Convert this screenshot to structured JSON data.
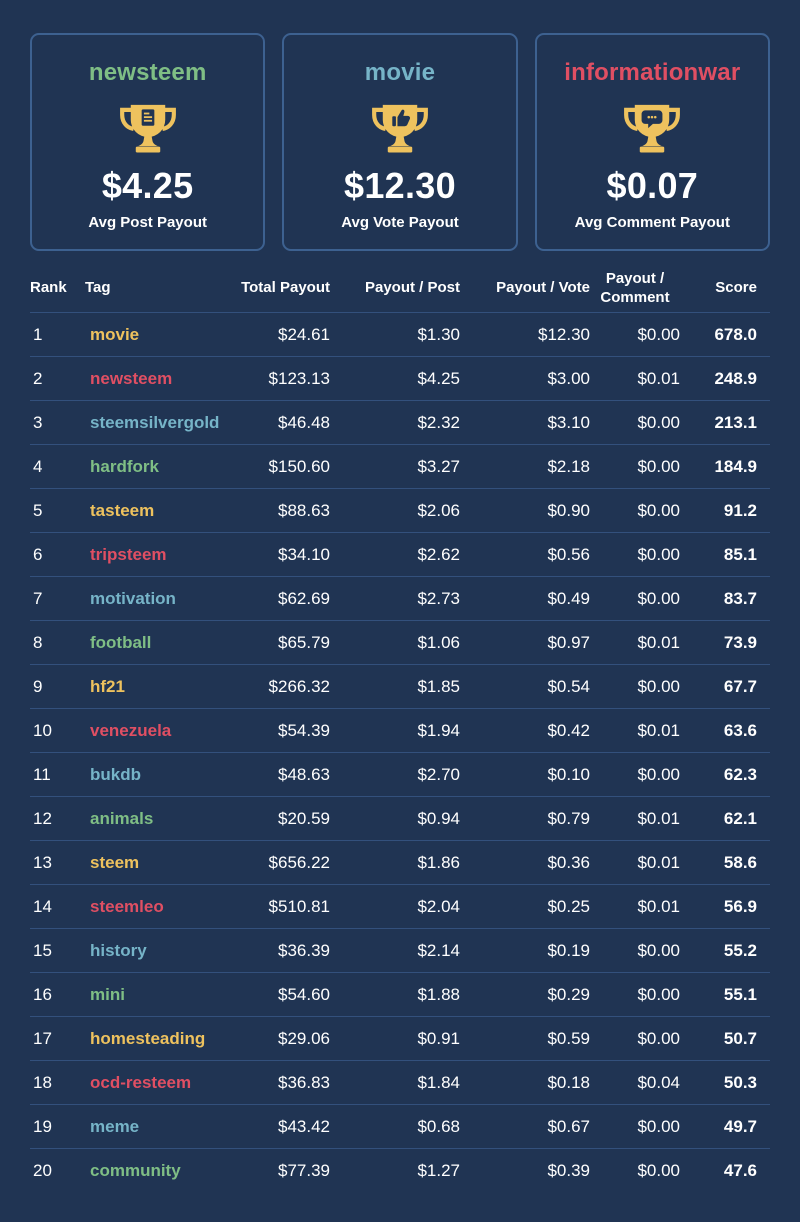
{
  "colors": {
    "background": "#203453",
    "card_border": "#3d6190",
    "row_separator": "#33507c",
    "text": "#ffffff",
    "gold": "#eec25e",
    "red": "#e04f63",
    "blue": "#76b4c8",
    "green": "#7fbe85"
  },
  "cards": [
    {
      "tag": "newsteem",
      "color": "#7fbe85",
      "amount": "$4.25",
      "label": "Avg Post Payout",
      "icon": "post-trophy-icon"
    },
    {
      "tag": "movie",
      "color": "#76b4c8",
      "amount": "$12.30",
      "label": "Avg Vote Payout",
      "icon": "vote-trophy-icon"
    },
    {
      "tag": "informationwar",
      "color": "#e04f63",
      "amount": "$0.07",
      "label": "Avg Comment Payout",
      "icon": "comment-trophy-icon"
    }
  ],
  "table": {
    "headers": [
      "Rank",
      "Tag",
      "Total Payout",
      "Payout / Post",
      "Payout / Vote",
      "Payout / Comment",
      "Score"
    ],
    "tag_color_cycle": [
      "#eec25e",
      "#e04f63",
      "#76b4c8",
      "#7fbe85"
    ],
    "rows": [
      [
        "1",
        "movie",
        "$24.61",
        "$1.30",
        "$12.30",
        "$0.00",
        "678.0"
      ],
      [
        "2",
        "newsteem",
        "$123.13",
        "$4.25",
        "$3.00",
        "$0.01",
        "248.9"
      ],
      [
        "3",
        "steemsilvergold",
        "$46.48",
        "$2.32",
        "$3.10",
        "$0.00",
        "213.1"
      ],
      [
        "4",
        "hardfork",
        "$150.60",
        "$3.27",
        "$2.18",
        "$0.00",
        "184.9"
      ],
      [
        "5",
        "tasteem",
        "$88.63",
        "$2.06",
        "$0.90",
        "$0.00",
        "91.2"
      ],
      [
        "6",
        "tripsteem",
        "$34.10",
        "$2.62",
        "$0.56",
        "$0.00",
        "85.1"
      ],
      [
        "7",
        "motivation",
        "$62.69",
        "$2.73",
        "$0.49",
        "$0.00",
        "83.7"
      ],
      [
        "8",
        "football",
        "$65.79",
        "$1.06",
        "$0.97",
        "$0.01",
        "73.9"
      ],
      [
        "9",
        "hf21",
        "$266.32",
        "$1.85",
        "$0.54",
        "$0.00",
        "67.7"
      ],
      [
        "10",
        "venezuela",
        "$54.39",
        "$1.94",
        "$0.42",
        "$0.01",
        "63.6"
      ],
      [
        "11",
        "bukdb",
        "$48.63",
        "$2.70",
        "$0.10",
        "$0.00",
        "62.3"
      ],
      [
        "12",
        "animals",
        "$20.59",
        "$0.94",
        "$0.79",
        "$0.01",
        "62.1"
      ],
      [
        "13",
        "steem",
        "$656.22",
        "$1.86",
        "$0.36",
        "$0.01",
        "58.6"
      ],
      [
        "14",
        "steemleo",
        "$510.81",
        "$2.04",
        "$0.25",
        "$0.01",
        "56.9"
      ],
      [
        "15",
        "history",
        "$36.39",
        "$2.14",
        "$0.19",
        "$0.00",
        "55.2"
      ],
      [
        "16",
        "mini",
        "$54.60",
        "$1.88",
        "$0.29",
        "$0.00",
        "55.1"
      ],
      [
        "17",
        "homesteading",
        "$29.06",
        "$0.91",
        "$0.59",
        "$0.00",
        "50.7"
      ],
      [
        "18",
        "ocd-resteem",
        "$36.83",
        "$1.84",
        "$0.18",
        "$0.04",
        "50.3"
      ],
      [
        "19",
        "meme",
        "$43.42",
        "$0.68",
        "$0.67",
        "$0.00",
        "49.7"
      ],
      [
        "20",
        "community",
        "$77.39",
        "$1.27",
        "$0.39",
        "$0.00",
        "47.6"
      ]
    ]
  },
  "chart_data": {
    "type": "table",
    "columns": [
      "Rank",
      "Tag",
      "Total Payout ($)",
      "Payout / Post ($)",
      "Payout / Vote ($)",
      "Payout / Comment ($)",
      "Score"
    ],
    "rows": [
      [
        1,
        "movie",
        24.61,
        1.3,
        12.3,
        0.0,
        678.0
      ],
      [
        2,
        "newsteem",
        123.13,
        4.25,
        3.0,
        0.01,
        248.9
      ],
      [
        3,
        "steemsilvergold",
        46.48,
        2.32,
        3.1,
        0.0,
        213.1
      ],
      [
        4,
        "hardfork",
        150.6,
        3.27,
        2.18,
        0.0,
        184.9
      ],
      [
        5,
        "tasteem",
        88.63,
        2.06,
        0.9,
        0.0,
        91.2
      ],
      [
        6,
        "tripsteem",
        34.1,
        2.62,
        0.56,
        0.0,
        85.1
      ],
      [
        7,
        "motivation",
        62.69,
        2.73,
        0.49,
        0.0,
        83.7
      ],
      [
        8,
        "football",
        65.79,
        1.06,
        0.97,
        0.01,
        73.9
      ],
      [
        9,
        "hf21",
        266.32,
        1.85,
        0.54,
        0.0,
        67.7
      ],
      [
        10,
        "venezuela",
        54.39,
        1.94,
        0.42,
        0.01,
        63.6
      ],
      [
        11,
        "bukdb",
        48.63,
        2.7,
        0.1,
        0.0,
        62.3
      ],
      [
        12,
        "animals",
        20.59,
        0.94,
        0.79,
        0.01,
        62.1
      ],
      [
        13,
        "steem",
        656.22,
        1.86,
        0.36,
        0.01,
        58.6
      ],
      [
        14,
        "steemleo",
        510.81,
        2.04,
        0.25,
        0.01,
        56.9
      ],
      [
        15,
        "history",
        36.39,
        2.14,
        0.19,
        0.0,
        55.2
      ],
      [
        16,
        "mini",
        54.6,
        1.88,
        0.29,
        0.0,
        55.1
      ],
      [
        17,
        "homesteading",
        29.06,
        0.91,
        0.59,
        0.0,
        50.7
      ],
      [
        18,
        "ocd-resteem",
        36.83,
        1.84,
        0.18,
        0.04,
        50.3
      ],
      [
        19,
        "meme",
        43.42,
        0.68,
        0.67,
        0.0,
        49.7
      ],
      [
        20,
        "community",
        77.39,
        1.27,
        0.39,
        0.0,
        47.6
      ]
    ],
    "summary_cards": [
      {
        "tag": "newsteem",
        "metric": "Avg Post Payout",
        "value": 4.25
      },
      {
        "tag": "movie",
        "metric": "Avg Vote Payout",
        "value": 12.3
      },
      {
        "tag": "informationwar",
        "metric": "Avg Comment Payout",
        "value": 0.07
      }
    ]
  }
}
